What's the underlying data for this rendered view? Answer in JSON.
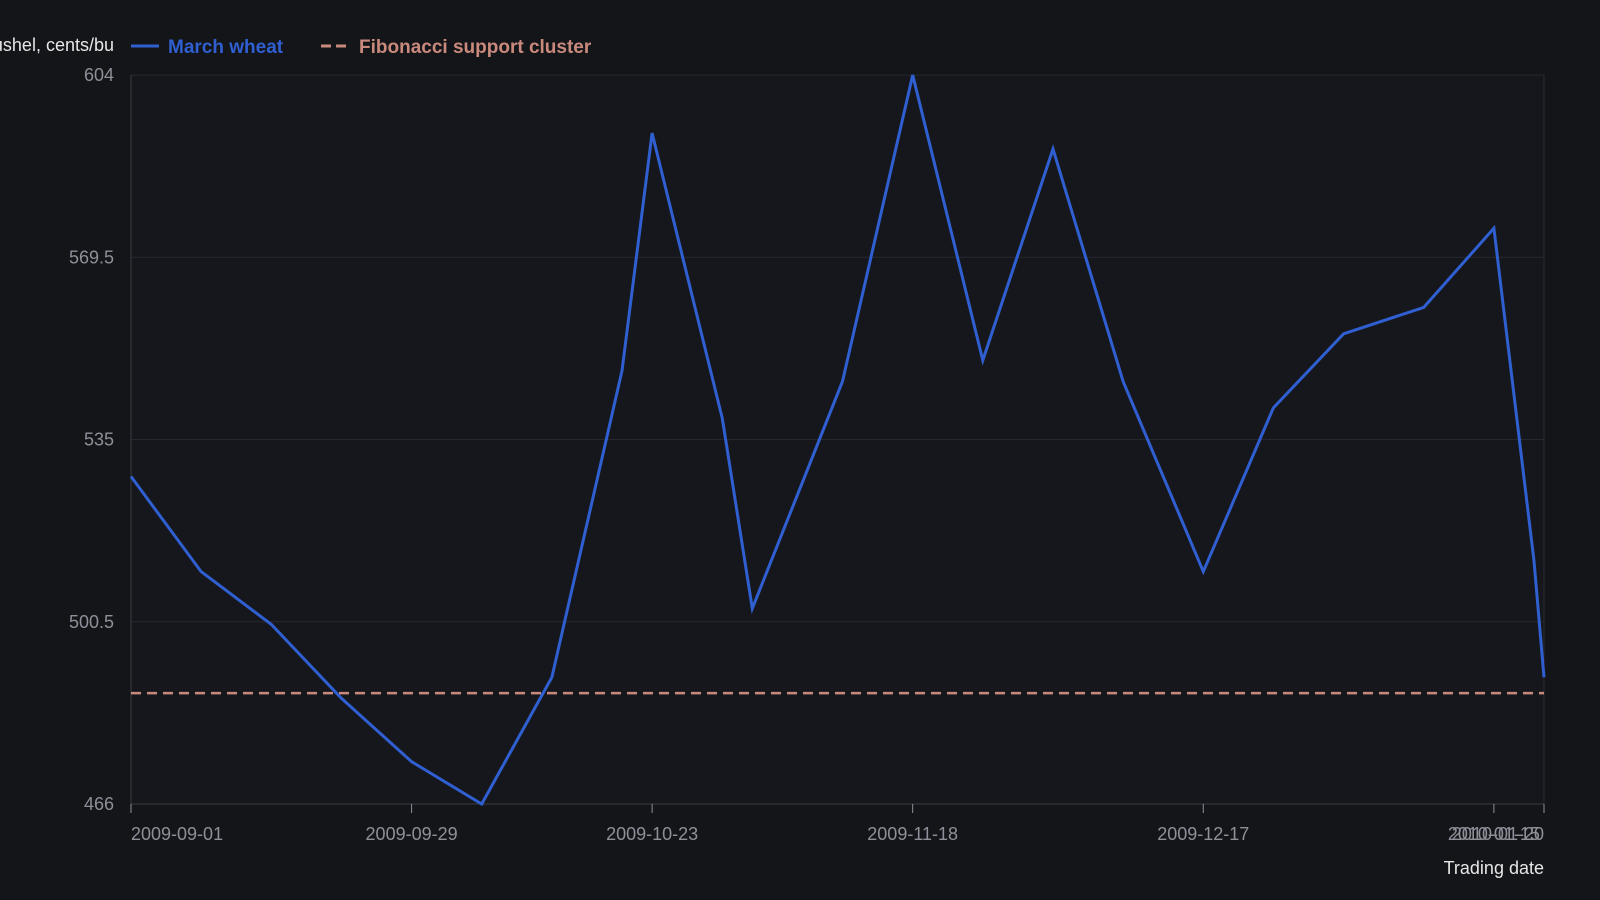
{
  "chart_data": {
    "type": "line",
    "title": "",
    "xlabel": "Trading date",
    "ylabel": "Price per bushel, cents/bu",
    "ylim": [
      466,
      604
    ],
    "yticks": [
      "466",
      "500.5",
      "535",
      "569.5",
      "604"
    ],
    "xlim": [
      "2009-09-01",
      "2010-01-20"
    ],
    "xticks": [
      "2009-09-01",
      "2009-09-29",
      "2009-10-23",
      "2009-11-18",
      "2009-12-17",
      "2010-01-15",
      "2010-01-20"
    ],
    "grid": true,
    "legend_position": "top-left",
    "series": [
      {
        "name": "March wheat",
        "color": "#2f5fd0",
        "style": "solid",
        "points": [
          {
            "x": "2009-09-01",
            "y": 528
          },
          {
            "x": "2009-09-08",
            "y": 510
          },
          {
            "x": "2009-09-15",
            "y": 500
          },
          {
            "x": "2009-09-22",
            "y": 486
          },
          {
            "x": "2009-09-29",
            "y": 474
          },
          {
            "x": "2009-10-06",
            "y": 466
          },
          {
            "x": "2009-10-13",
            "y": 490
          },
          {
            "x": "2009-10-20",
            "y": 548
          },
          {
            "x": "2009-10-23",
            "y": 593
          },
          {
            "x": "2009-10-30",
            "y": 539
          },
          {
            "x": "2009-11-02",
            "y": 503
          },
          {
            "x": "2009-11-11",
            "y": 546
          },
          {
            "x": "2009-11-18",
            "y": 604
          },
          {
            "x": "2009-11-25",
            "y": 550
          },
          {
            "x": "2009-12-02",
            "y": 590
          },
          {
            "x": "2009-12-09",
            "y": 546
          },
          {
            "x": "2009-12-17",
            "y": 510
          },
          {
            "x": "2009-12-24",
            "y": 541
          },
          {
            "x": "2009-12-31",
            "y": 555
          },
          {
            "x": "2010-01-08",
            "y": 560
          },
          {
            "x": "2010-01-15",
            "y": 575
          },
          {
            "x": "2010-01-19",
            "y": 512
          },
          {
            "x": "2010-01-20",
            "y": 490
          }
        ]
      },
      {
        "name": "Fibonacci support cluster",
        "color": "#c98a7d",
        "style": "dashed",
        "points": [
          {
            "x": "2009-09-01",
            "y": 487
          },
          {
            "x": "2010-01-20",
            "y": 487
          }
        ]
      }
    ]
  }
}
